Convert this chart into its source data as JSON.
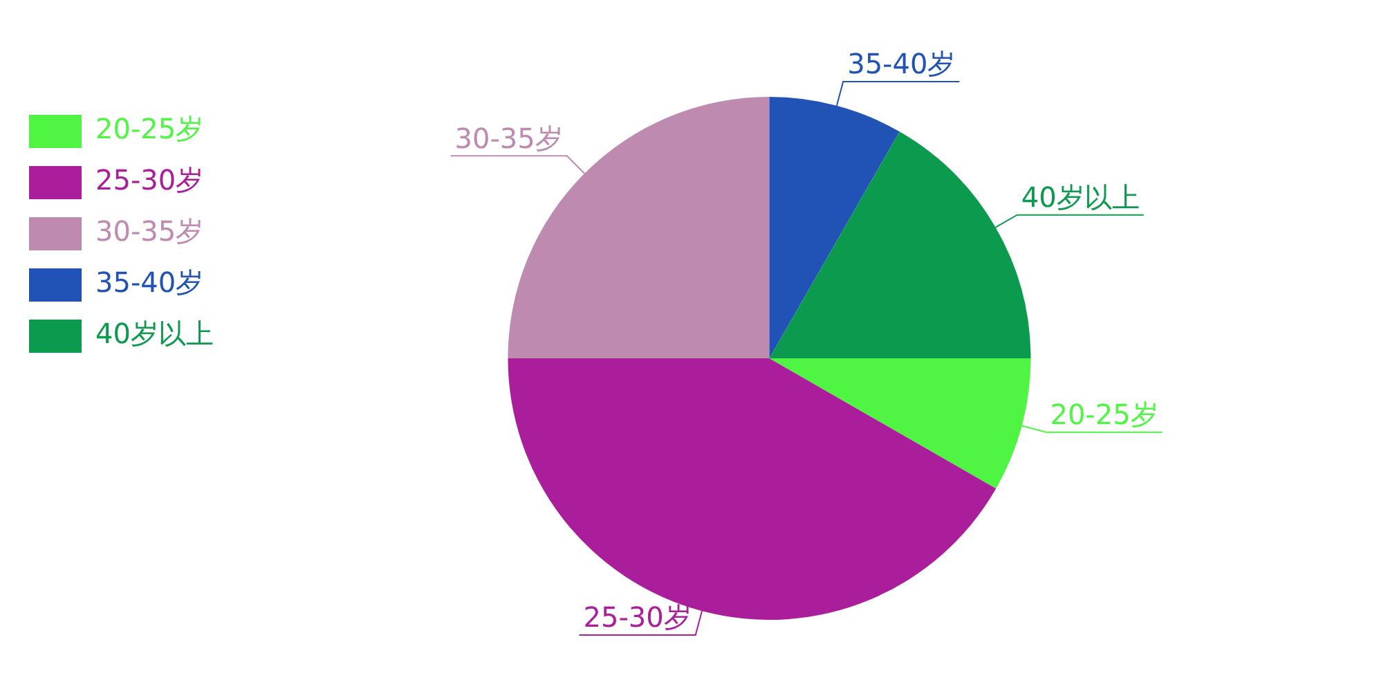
{
  "chart_data": {
    "type": "pie",
    "categories": [
      "20-25岁",
      "25-30岁",
      "30-35岁",
      "35-40岁",
      "40岁以上"
    ],
    "values": [
      8.3,
      41.7,
      25,
      8.3,
      16.7
    ],
    "colors": [
      "#4ff542",
      "#ab1e9b",
      "#be8aaf",
      "#2053b5",
      "#0c9a4e"
    ],
    "legend": "top left"
  }
}
